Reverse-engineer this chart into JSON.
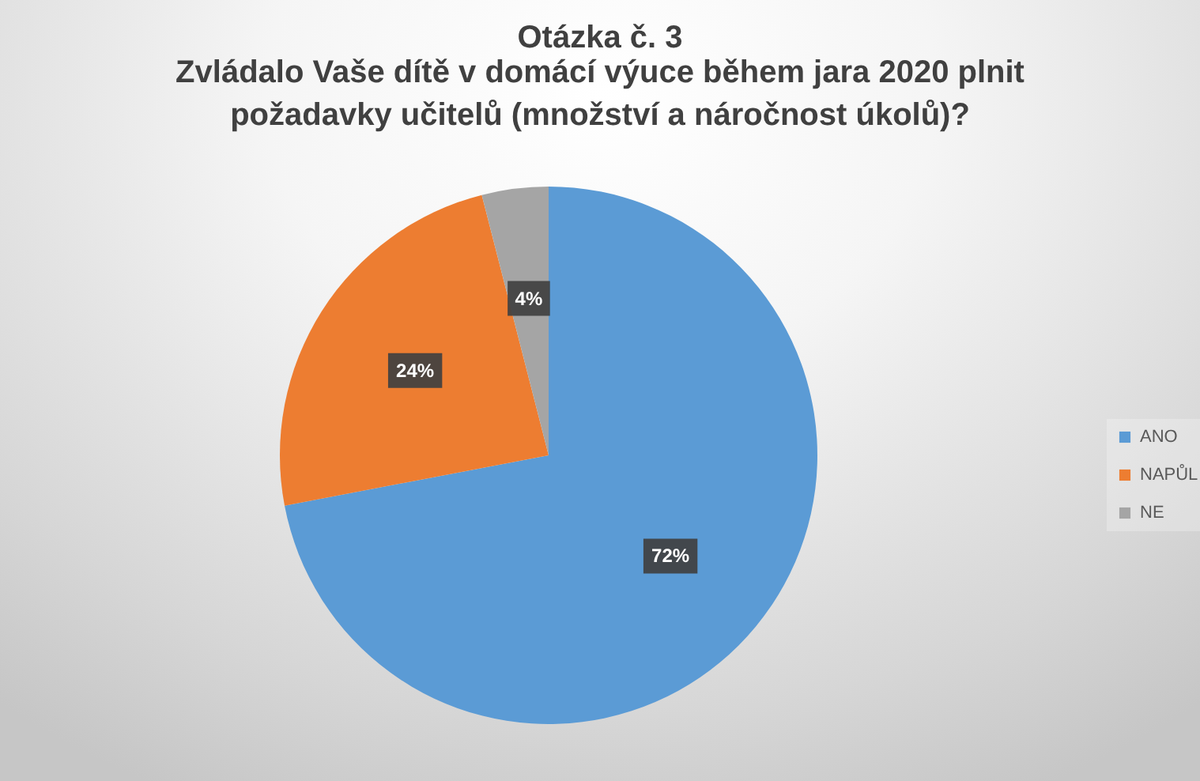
{
  "chart_data": {
    "type": "pie",
    "title": "Otázka č. 3",
    "subtitle": "Zvládalo Vaše dítě v domácí výuce během jara 2020 plnit požadavky učitelů (množství a náročnost úkolů)?",
    "categories": [
      "ANO",
      "NAPŮL",
      "NE"
    ],
    "values": [
      72,
      24,
      4
    ],
    "colors": [
      "#5b9bd5",
      "#ed7d31",
      "#a5a5a5"
    ],
    "value_labels": [
      "72%",
      "24%",
      "4%"
    ],
    "legend": "right"
  }
}
